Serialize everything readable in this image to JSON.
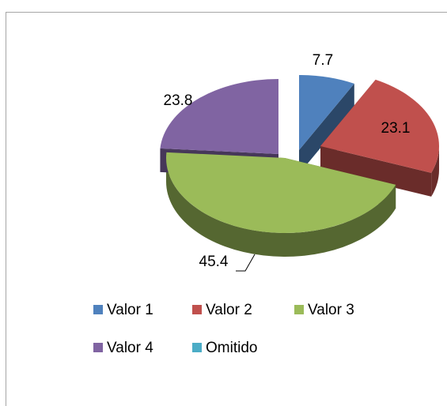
{
  "chart_data": {
    "type": "pie",
    "categories": [
      "Valor 1",
      "Valor 2",
      "Valor 3",
      "Valor 4",
      "Omitido"
    ],
    "values": [
      7.7,
      23.1,
      45.4,
      23.8,
      0
    ],
    "colors": [
      "#4f81bd",
      "#c0504d",
      "#9bbb59",
      "#8064a2",
      "#4bacc6"
    ],
    "legend": "bottom"
  }
}
